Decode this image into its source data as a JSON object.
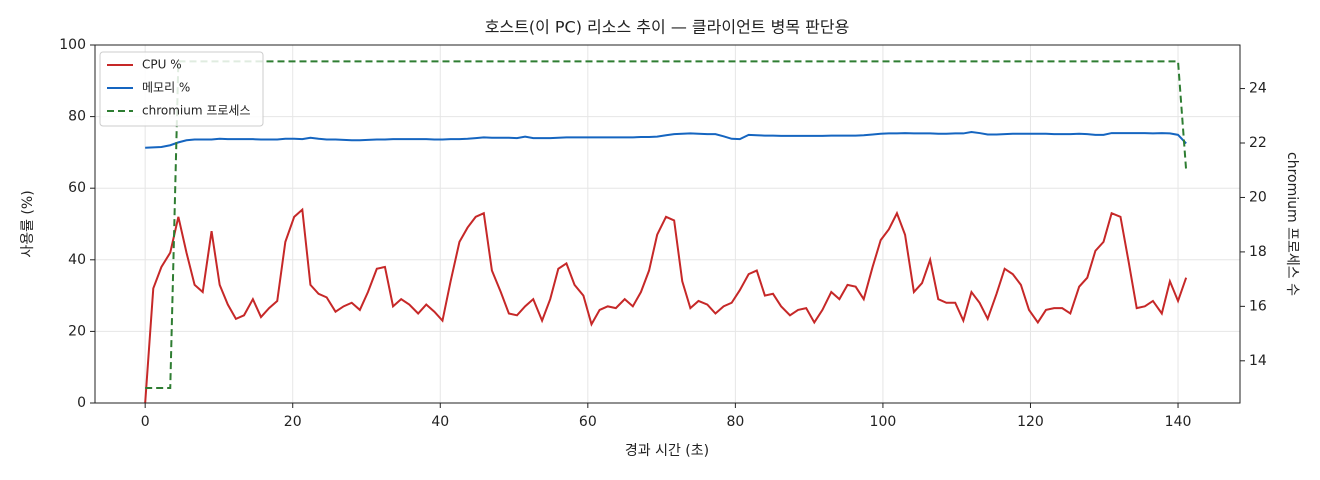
{
  "chart_data": {
    "type": "line",
    "title": "호스트(이 PC) 리소스 추이 — 클라이언트 병목 판단용",
    "x_label": "경과 시간 (초)",
    "y_label": "사용률 (%)",
    "y2_label": "chromium 프로세스 수",
    "x": [
      0,
      1.1,
      2.2,
      3.4,
      4.5,
      5.6,
      6.7,
      7.8,
      9.0,
      10.1,
      11.2,
      12.3,
      13.4,
      14.6,
      15.7,
      16.8,
      17.9,
      19.0,
      20.2,
      21.3,
      22.4,
      23.5,
      24.6,
      25.8,
      26.9,
      28.0,
      29.1,
      30.2,
      31.4,
      32.5,
      33.6,
      34.7,
      35.8,
      37.0,
      38.1,
      39.2,
      40.3,
      41.4,
      42.6,
      43.7,
      44.8,
      45.9,
      47.0,
      48.2,
      49.3,
      50.4,
      51.5,
      52.6,
      53.8,
      54.9,
      56.0,
      57.1,
      58.2,
      59.4,
      60.5,
      61.6,
      62.7,
      63.8,
      65.0,
      66.1,
      67.2,
      68.3,
      69.4,
      70.6,
      71.7,
      72.8,
      73.9,
      75.0,
      76.2,
      77.3,
      78.4,
      79.5,
      80.6,
      81.8,
      82.9,
      84.0,
      85.1,
      86.2,
      87.4,
      88.5,
      89.6,
      90.7,
      91.8,
      93.0,
      94.1,
      95.2,
      96.3,
      97.4,
      98.6,
      99.7,
      100.8,
      101.9,
      103.0,
      104.2,
      105.3,
      106.4,
      107.5,
      108.6,
      109.8,
      110.9,
      112.0,
      113.1,
      114.2,
      115.4,
      116.5,
      117.6,
      118.7,
      119.8,
      121.0,
      122.1,
      123.2,
      124.3,
      125.4,
      126.6,
      127.7,
      128.8,
      129.9,
      131.0,
      132.2,
      133.3,
      134.4,
      135.5,
      136.6,
      137.8,
      138.9,
      140.0,
      141.1
    ],
    "series": [
      {
        "name": "CPU %",
        "color": "#c62828",
        "linestyle": "solid",
        "axis": "y",
        "values": [
          0,
          32,
          38,
          42,
          52,
          42,
          33,
          31,
          48,
          33,
          27.5,
          23.5,
          24.5,
          29,
          24,
          26.5,
          28.5,
          45,
          52,
          54,
          33,
          30.5,
          29.5,
          25.5,
          27,
          28,
          26,
          31,
          37.5,
          38,
          27,
          29,
          27.5,
          25,
          27.5,
          25.5,
          23,
          34,
          45,
          49,
          52,
          53,
          37,
          31,
          25,
          24.5,
          27,
          29,
          23,
          29,
          37.5,
          39,
          33,
          30,
          22,
          26,
          27,
          26.5,
          29,
          27,
          31,
          37,
          47,
          52,
          51,
          34,
          26.5,
          28.5,
          27.5,
          25,
          27,
          28,
          31.5,
          36,
          37,
          30,
          30.5,
          27,
          24.5,
          26,
          26.5,
          22.5,
          26,
          31,
          29,
          33,
          32.5,
          29,
          38,
          45.5,
          48.5,
          53,
          47,
          31,
          33.5,
          40,
          29,
          28,
          28,
          23,
          31,
          28,
          23.5,
          30.5,
          37.5,
          36,
          33,
          26,
          22.5,
          26,
          26.5,
          26.5,
          25,
          32.5,
          35,
          42.5,
          45,
          53,
          52,
          39.5,
          26.5,
          27,
          28.5,
          25,
          34,
          28.5,
          35
        ]
      },
      {
        "name": "메모리 %",
        "color": "#1565c0",
        "linestyle": "solid",
        "axis": "y",
        "values": [
          71.3,
          71.4,
          71.5,
          72,
          72.8,
          73.4,
          73.6,
          73.6,
          73.6,
          73.8,
          73.7,
          73.7,
          73.7,
          73.7,
          73.6,
          73.6,
          73.6,
          73.8,
          73.8,
          73.7,
          74.1,
          73.8,
          73.6,
          73.6,
          73.5,
          73.4,
          73.4,
          73.5,
          73.6,
          73.6,
          73.7,
          73.7,
          73.7,
          73.7,
          73.7,
          73.6,
          73.6,
          73.7,
          73.7,
          73.8,
          74,
          74.2,
          74.1,
          74.1,
          74.1,
          74,
          74.4,
          74,
          74,
          74,
          74.1,
          74.2,
          74.2,
          74.2,
          74.2,
          74.2,
          74.2,
          74.2,
          74.2,
          74.2,
          74.3,
          74.3,
          74.4,
          74.8,
          75.1,
          75.2,
          75.3,
          75.2,
          75.1,
          75.1,
          74.5,
          73.8,
          73.7,
          74.9,
          74.8,
          74.7,
          74.7,
          74.6,
          74.6,
          74.6,
          74.6,
          74.6,
          74.6,
          74.7,
          74.7,
          74.7,
          74.7,
          74.8,
          75,
          75.2,
          75.3,
          75.3,
          75.4,
          75.3,
          75.3,
          75.3,
          75.2,
          75.2,
          75.3,
          75.3,
          75.7,
          75.4,
          75,
          75,
          75.1,
          75.2,
          75.2,
          75.2,
          75.2,
          75.2,
          75.1,
          75.1,
          75.1,
          75.2,
          75.1,
          74.9,
          74.9,
          75.4,
          75.4,
          75.4,
          75.4,
          75.4,
          75.3,
          75.4,
          75.3,
          74.9,
          72.5
        ]
      },
      {
        "name": "chromium 프로세스",
        "color": "#2e7d32",
        "linestyle": "dashed",
        "axis": "y2",
        "values": [
          13,
          13,
          13,
          13,
          25,
          25,
          25,
          25,
          25,
          25,
          25,
          25,
          25,
          25,
          25,
          25,
          25,
          25,
          25,
          25,
          25,
          25,
          25,
          25,
          25,
          25,
          25,
          25,
          25,
          25,
          25,
          25,
          25,
          25,
          25,
          25,
          25,
          25,
          25,
          25,
          25,
          25,
          25,
          25,
          25,
          25,
          25,
          25,
          25,
          25,
          25,
          25,
          25,
          25,
          25,
          25,
          25,
          25,
          25,
          25,
          25,
          25,
          25,
          25,
          25,
          25,
          25,
          25,
          25,
          25,
          25,
          25,
          25,
          25,
          25,
          25,
          25,
          25,
          25,
          25,
          25,
          25,
          25,
          25,
          25,
          25,
          25,
          25,
          25,
          25,
          25,
          25,
          25,
          25,
          25,
          25,
          25,
          25,
          25,
          25,
          25,
          25,
          25,
          25,
          25,
          25,
          25,
          25,
          25,
          25,
          25,
          25,
          25,
          25,
          25,
          25,
          25,
          25,
          25,
          25,
          25,
          25,
          25,
          25,
          25,
          25,
          21
        ]
      }
    ],
    "xlim": [
      -6.8,
      148.4
    ],
    "xticks": [
      0,
      20,
      40,
      60,
      80,
      100,
      120,
      140
    ],
    "ylim": [
      0,
      100
    ],
    "yticks": [
      0,
      20,
      40,
      60,
      80,
      100
    ],
    "y2lim": [
      12.45,
      25.6
    ],
    "y2ticks": [
      14,
      16,
      18,
      20,
      22,
      24
    ],
    "grid": true,
    "legend": "upper-left"
  }
}
